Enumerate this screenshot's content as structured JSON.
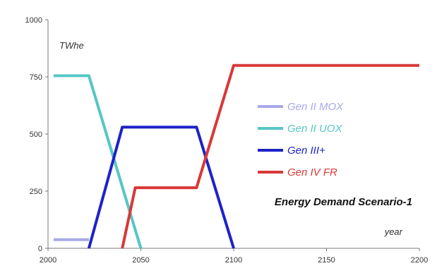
{
  "chart_data": {
    "type": "line",
    "title": "Energy Demand Scenario-1",
    "ylabel": "TWhe",
    "xlabel": "year",
    "xlim": [
      2000,
      2200
    ],
    "ylim": [
      0,
      1000
    ],
    "x_ticks": [
      2000,
      2050,
      2100,
      2150,
      2200
    ],
    "y_ticks": [
      0,
      250,
      500,
      750,
      1000
    ],
    "legend_position": "center-right",
    "series": [
      {
        "name": "Gen II MOX",
        "color": "#a8a8e8",
        "points": [
          [
            2003,
            38
          ],
          [
            2022,
            38
          ]
        ]
      },
      {
        "name": "Gen II UOX",
        "color": "#56c6c6",
        "points": [
          [
            2003,
            755
          ],
          [
            2022,
            755
          ],
          [
            2050,
            0
          ]
        ]
      },
      {
        "name": "Gen III+",
        "color": "#1e22c8",
        "points": [
          [
            2022,
            0
          ],
          [
            2040,
            530
          ],
          [
            2080,
            530
          ],
          [
            2100,
            0
          ]
        ]
      },
      {
        "name": "Gen IV FR",
        "color": "#d83838",
        "points": [
          [
            2040,
            0
          ],
          [
            2047,
            265
          ],
          [
            2080,
            265
          ],
          [
            2100,
            800
          ],
          [
            2200,
            800
          ]
        ]
      }
    ]
  }
}
